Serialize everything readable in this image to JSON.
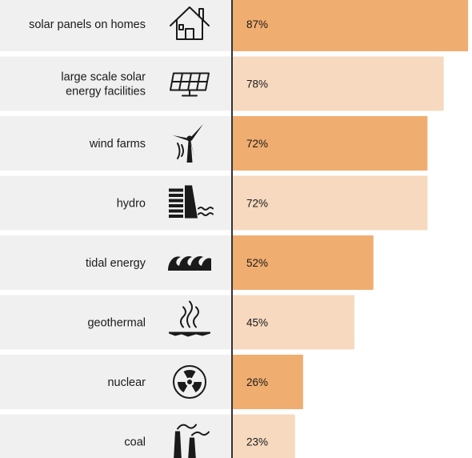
{
  "chart_data": {
    "type": "bar",
    "orientation": "horizontal",
    "categories": [
      [
        "solar panels on homes"
      ],
      [
        "large scale solar",
        "energy facilities"
      ],
      [
        "wind farms"
      ],
      [
        "hydro"
      ],
      [
        "tidal energy"
      ],
      [
        "geothermal"
      ],
      [
        "nuclear"
      ],
      [
        "coal"
      ]
    ],
    "icons": [
      "house-icon",
      "solar-panel-icon",
      "wind-turbine-icon",
      "hydro-dam-icon",
      "wave-icon",
      "geothermal-steam-icon",
      "radiation-icon",
      "factory-chimney-icon"
    ],
    "values": [
      87,
      78,
      72,
      72,
      52,
      45,
      26,
      23
    ],
    "value_labels": [
      "87%",
      "78%",
      "72%",
      "72%",
      "52%",
      "45%",
      "26%",
      "23%"
    ],
    "xlim": [
      0,
      100
    ],
    "colors": {
      "bar_dark": "#f0ad70",
      "bar_light": "#f7d9bf",
      "row_background": "#f0f0f0",
      "axis_line": "#333333"
    }
  }
}
